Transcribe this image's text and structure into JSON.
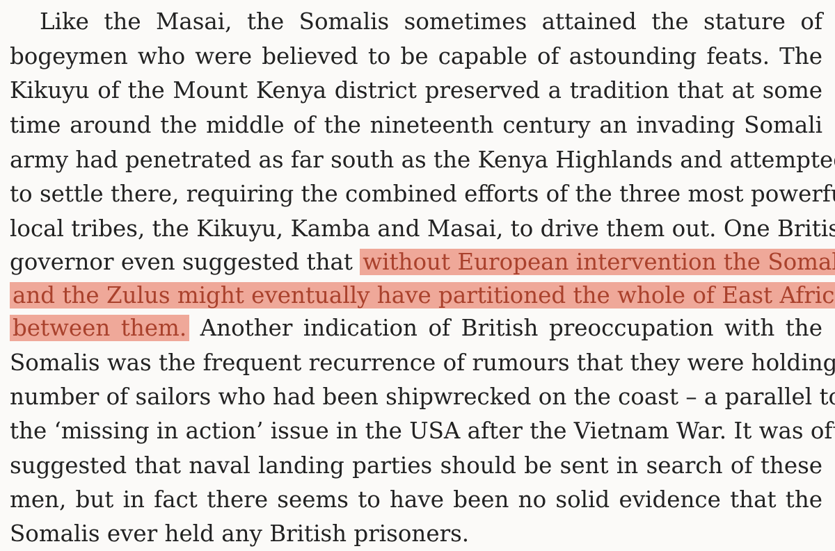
{
  "highlight_color": "#efa899",
  "highlight_text_color": "#a9412c",
  "lines": [
    "  Like the Masai, the Somalis sometimes attained the stature of",
    "bogeymen who were believed to be capable of astounding feats. The",
    "Kikuyu of the Mount Kenya district preserved a tradition that at some",
    "time around the middle of the nineteenth century an invading Somali",
    "army had penetrated as far south as the Kenya Highlands and attempted",
    "to settle there, requiring the combined efforts of the three most powerful",
    "local tribes, the Kikuyu, Kamba and Masai, to drive them out. One British"
  ],
  "line8_plain": "governor even suggested that ",
  "line8_highlight": "without European intervention the Somalis",
  "line9_highlight": "and the Zulus might eventually have partitioned the whole of East Africa",
  "line10_highlight": "between them.",
  "line10_plain": " Another indication of British preoccupation with the",
  "lines_after": [
    "Somalis was the frequent recurrence of rumours that they were holding a",
    "number of sailors who had been shipwrecked on the coast – a parallel to",
    "the ‘missing in action’ issue in the USA after the Vietnam War. It was often",
    "suggested that naval landing parties should be sent in search of these",
    "men, but in fact there seems to have been no solid evidence that the",
    "Somalis ever held any British prisoners."
  ]
}
